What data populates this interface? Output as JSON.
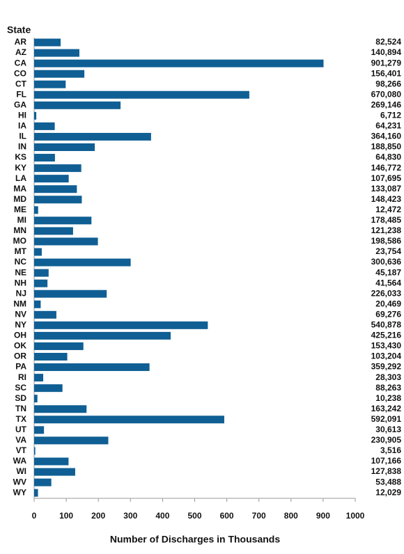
{
  "chart_data": {
    "type": "hbar",
    "y_axis_label": "State",
    "x_axis_label": "Number of Discharges in Thousands",
    "categories": [
      "AR",
      "AZ",
      "CA",
      "CO",
      "CT",
      "FL",
      "GA",
      "HI",
      "IA",
      "IL",
      "IN",
      "KS",
      "KY",
      "LA",
      "MA",
      "MD",
      "ME",
      "MI",
      "MN",
      "MO",
      "MT",
      "NC",
      "NE",
      "NH",
      "NJ",
      "NM",
      "NV",
      "NY",
      "OH",
      "OK",
      "OR",
      "PA",
      "RI",
      "SC",
      "SD",
      "TN",
      "TX",
      "UT",
      "VA",
      "VT",
      "WA",
      "WI",
      "WV",
      "WY"
    ],
    "values": [
      82.524,
      140.894,
      901.279,
      156.401,
      98.266,
      670.08,
      269.146,
      6.712,
      64.231,
      364.16,
      188.85,
      64.83,
      146.772,
      107.695,
      133.087,
      148.423,
      12.472,
      178.485,
      121.238,
      198.586,
      23.754,
      300.636,
      45.187,
      41.564,
      226.033,
      20.469,
      69.276,
      540.878,
      425.216,
      153.43,
      103.204,
      359.292,
      28.303,
      88.263,
      10.238,
      163.242,
      592.091,
      30.613,
      230.905,
      3.516,
      107.166,
      127.838,
      53.488,
      12.029
    ],
    "value_labels": [
      "82,524",
      "140,894",
      "901,279",
      "156,401",
      "98,266",
      "670,080",
      "269,146",
      "6,712",
      "64,231",
      "364,160",
      "188,850",
      "64,830",
      "146,772",
      "107,695",
      "133,087",
      "148,423",
      "12,472",
      "178,485",
      "121,238",
      "198,586",
      "23,754",
      "300,636",
      "45,187",
      "41,564",
      "226,033",
      "20,469",
      "69,276",
      "540,878",
      "425,216",
      "153,430",
      "103,204",
      "359,292",
      "28,303",
      "88,263",
      "10,238",
      "163,242",
      "592,091",
      "30,613",
      "230,905",
      "3,516",
      "107,166",
      "127,838",
      "53,488",
      "12,029"
    ],
    "color": "#0f5f94",
    "xlim": [
      0,
      1000
    ],
    "xticks": [
      0,
      100,
      200,
      300,
      400,
      500,
      600,
      700,
      800,
      900,
      1000
    ]
  }
}
